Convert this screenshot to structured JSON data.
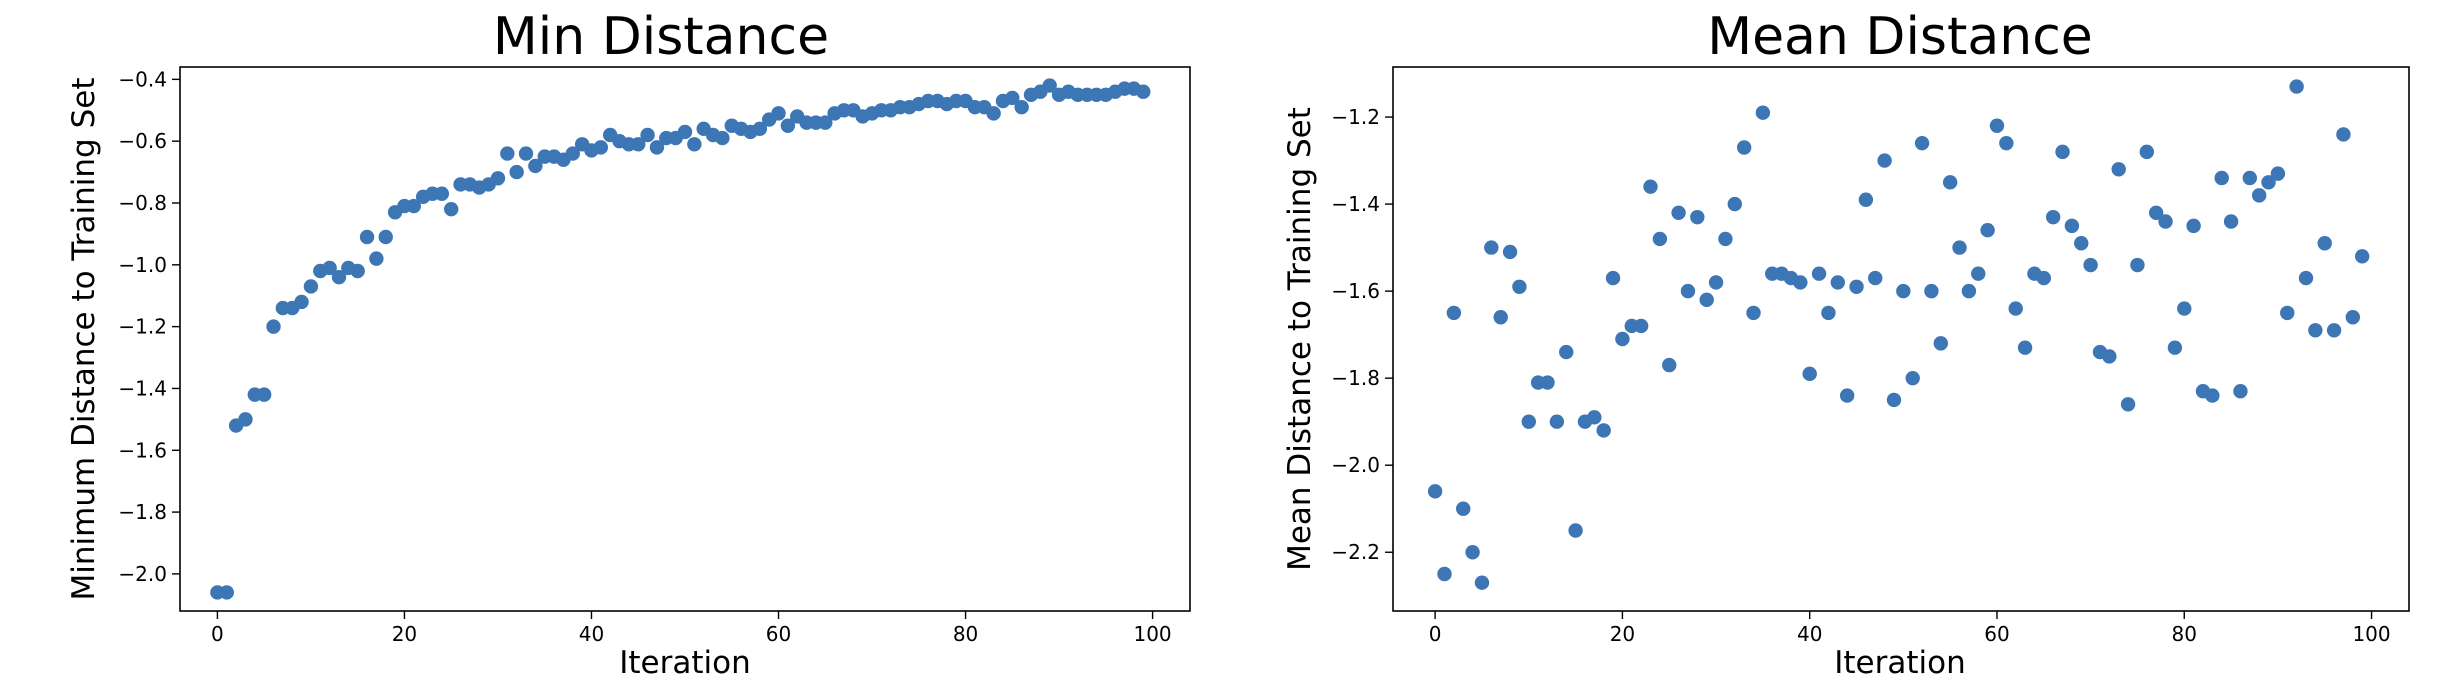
{
  "chart_data": [
    {
      "type": "scatter",
      "title": "Min Distance",
      "xlabel": "Iteration",
      "ylabel": "Minimum Distance to Training Set",
      "xlim": [
        -4,
        104
      ],
      "ylim": [
        -2.12,
        -0.36
      ],
      "xticks": [
        0,
        20,
        40,
        60,
        80,
        100
      ],
      "yticks": [
        -2.0,
        -1.8,
        -1.6,
        -1.4,
        -1.2,
        -1.0,
        -0.8,
        -0.6,
        -0.4
      ],
      "xtick_labels": [
        "0",
        "20",
        "40",
        "60",
        "80",
        "100"
      ],
      "ytick_labels": [
        "−2.0",
        "−1.8",
        "−1.6",
        "−1.4",
        "−1.2",
        "−1.0",
        "−0.8",
        "−0.6",
        "−0.4"
      ],
      "grid": false,
      "color": "#3d76b5",
      "x": [
        0,
        1,
        2,
        3,
        4,
        5,
        6,
        7,
        8,
        9,
        10,
        11,
        12,
        13,
        14,
        15,
        16,
        17,
        18,
        19,
        20,
        21,
        22,
        23,
        24,
        25,
        26,
        27,
        28,
        29,
        30,
        31,
        32,
        33,
        34,
        35,
        36,
        37,
        38,
        39,
        40,
        41,
        42,
        43,
        44,
        45,
        46,
        47,
        48,
        49,
        50,
        51,
        52,
        53,
        54,
        55,
        56,
        57,
        58,
        59,
        60,
        61,
        62,
        63,
        64,
        65,
        66,
        67,
        68,
        69,
        70,
        71,
        72,
        73,
        74,
        75,
        76,
        77,
        78,
        79,
        80,
        81,
        82,
        83,
        84,
        85,
        86,
        87,
        88,
        89,
        90,
        91,
        92,
        93,
        94,
        95,
        96,
        97,
        98,
        99
      ],
      "y": [
        -2.06,
        -2.06,
        -1.52,
        -1.5,
        -1.42,
        -1.42,
        -1.2,
        -1.14,
        -1.14,
        -1.12,
        -1.07,
        -1.02,
        -1.01,
        -1.04,
        -1.01,
        -1.02,
        -0.91,
        -0.98,
        -0.91,
        -0.83,
        -0.81,
        -0.81,
        -0.78,
        -0.77,
        -0.77,
        -0.82,
        -0.74,
        -0.74,
        -0.75,
        -0.74,
        -0.72,
        -0.64,
        -0.7,
        -0.64,
        -0.68,
        -0.65,
        -0.65,
        -0.66,
        -0.64,
        -0.61,
        -0.63,
        -0.62,
        -0.58,
        -0.6,
        -0.61,
        -0.61,
        -0.58,
        -0.62,
        -0.59,
        -0.59,
        -0.57,
        -0.61,
        -0.56,
        -0.58,
        -0.59,
        -0.55,
        -0.56,
        -0.57,
        -0.56,
        -0.53,
        -0.51,
        -0.55,
        -0.52,
        -0.54,
        -0.54,
        -0.54,
        -0.51,
        -0.5,
        -0.5,
        -0.52,
        -0.51,
        -0.5,
        -0.5,
        -0.49,
        -0.49,
        -0.48,
        -0.47,
        -0.47,
        -0.48,
        -0.47,
        -0.47,
        -0.49,
        -0.49,
        -0.51,
        -0.47,
        -0.46,
        -0.49,
        -0.45,
        -0.44,
        -0.42,
        -0.45,
        -0.44,
        -0.45,
        -0.45,
        -0.45,
        -0.45,
        -0.44,
        -0.43,
        -0.43,
        -0.44
      ]
    },
    {
      "type": "scatter",
      "title": "Mean Distance",
      "xlabel": "Iteration",
      "ylabel": "Mean Distance to Training Set",
      "xlim": [
        -4.5,
        104
      ],
      "ylim": [
        -2.335,
        -1.085
      ],
      "xticks": [
        0,
        20,
        40,
        60,
        80,
        100
      ],
      "yticks": [
        -2.2,
        -2.0,
        -1.8,
        -1.6,
        -1.4,
        -1.2
      ],
      "xtick_labels": [
        "0",
        "20",
        "40",
        "60",
        "80",
        "100"
      ],
      "ytick_labels": [
        "−2.2",
        "−2.0",
        "−1.8",
        "−1.6",
        "−1.4",
        "−1.2"
      ],
      "grid": false,
      "color": "#3d76b5",
      "x": [
        0,
        1,
        2,
        3,
        4,
        5,
        6,
        7,
        8,
        9,
        10,
        11,
        12,
        13,
        14,
        15,
        16,
        17,
        18,
        19,
        20,
        21,
        22,
        23,
        24,
        25,
        26,
        27,
        28,
        29,
        30,
        31,
        32,
        33,
        34,
        35,
        36,
        37,
        38,
        39,
        40,
        41,
        42,
        43,
        44,
        45,
        46,
        47,
        48,
        49,
        50,
        51,
        52,
        53,
        54,
        55,
        56,
        57,
        58,
        59,
        60,
        61,
        62,
        63,
        64,
        65,
        66,
        67,
        68,
        69,
        70,
        71,
        72,
        73,
        74,
        75,
        76,
        77,
        78,
        79,
        80,
        81,
        82,
        83,
        84,
        85,
        86,
        87,
        88,
        89,
        90,
        91,
        92,
        93,
        94,
        95,
        96,
        97,
        98,
        99
      ],
      "y": [
        -2.06,
        -2.25,
        -1.65,
        -2.1,
        -2.2,
        -2.27,
        -1.5,
        -1.66,
        -1.51,
        -1.59,
        -1.9,
        -1.81,
        -1.81,
        -1.9,
        -1.74,
        -2.15,
        -1.9,
        -1.89,
        -1.92,
        -1.57,
        -1.71,
        -1.68,
        -1.68,
        -1.36,
        -1.48,
        -1.77,
        -1.42,
        -1.6,
        -1.43,
        -1.62,
        -1.58,
        -1.48,
        -1.4,
        -1.27,
        -1.65,
        -1.19,
        -1.56,
        -1.56,
        -1.57,
        -1.58,
        -1.79,
        -1.56,
        -1.65,
        -1.58,
        -1.84,
        -1.59,
        -1.39,
        -1.57,
        -1.3,
        -1.85,
        -1.6,
        -1.8,
        -1.26,
        -1.6,
        -1.72,
        -1.35,
        -1.5,
        -1.6,
        -1.56,
        -1.46,
        -1.22,
        -1.26,
        -1.64,
        -1.73,
        -1.56,
        -1.57,
        -1.43,
        -1.28,
        -1.45,
        -1.49,
        -1.54,
        -1.74,
        -1.75,
        -1.32,
        -1.86,
        -1.54,
        -1.28,
        -1.42,
        -1.44,
        -1.73,
        -1.64,
        -1.45,
        -1.83,
        -1.84,
        -1.34,
        -1.44,
        -1.83,
        -1.34,
        -1.38,
        -1.35,
        -1.33,
        -1.65,
        -1.13,
        -1.57,
        -1.69,
        -1.49,
        -1.69,
        -1.24,
        -1.66,
        -1.52
      ]
    }
  ]
}
